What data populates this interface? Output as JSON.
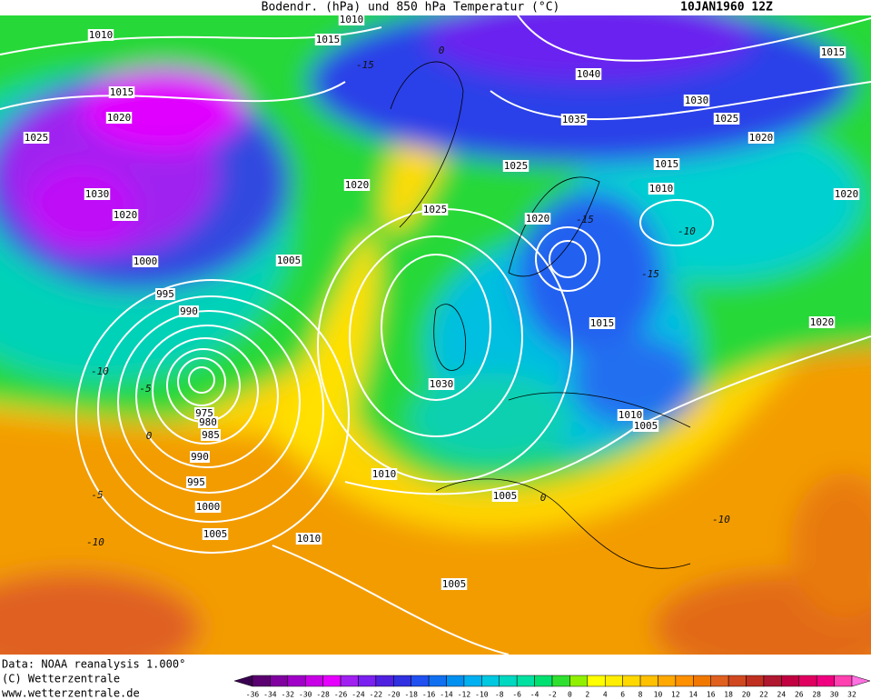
{
  "header": {
    "title": "Bodendr. (hPa) und 850 hPa Temperatur (°C)",
    "date": "10JAN1960 12Z"
  },
  "isobar_labels": [
    "1010",
    "1015",
    "1010",
    "1015",
    "1020",
    "1025",
    "1040",
    "1030",
    "1035",
    "1025",
    "1020",
    "1015",
    "1015",
    "1010",
    "1020",
    "1025",
    "1020",
    "1025",
    "1020",
    "1030",
    "1020",
    "1005",
    "1000",
    "995",
    "990",
    "1015",
    "1020",
    "1030",
    "975",
    "980",
    "985",
    "1010",
    "1005",
    "990",
    "1010",
    "995",
    "1005",
    "1000",
    "1005",
    "1010",
    "1005"
  ],
  "temperature_labels": [
    "-15",
    "0",
    "-15",
    "-15",
    "-10",
    "-10",
    "-5",
    "0",
    "-5",
    "-10",
    "0",
    "-10"
  ],
  "footer": {
    "source": "Data: NOAA reanalysis 1.000°",
    "copyright": "(C) Wetterzentrale",
    "url": "www.wetterzentrale.de"
  },
  "colorbar": {
    "labels": [
      "-36",
      "-34",
      "-32",
      "-30",
      "-28",
      "-26",
      "-24",
      "-22",
      "-20",
      "-18",
      "-16",
      "-14",
      "-12",
      "-10",
      "-8",
      "-6",
      "-4",
      "-2",
      "0",
      "2",
      "4",
      "6",
      "8",
      "10",
      "12",
      "14",
      "16",
      "18",
      "20",
      "22",
      "24",
      "26",
      "28",
      "30",
      "32"
    ],
    "colors": [
      "#3a0050",
      "#5a0070",
      "#8000a0",
      "#a000c8",
      "#c800e6",
      "#e600ff",
      "#a020f0",
      "#7a20f0",
      "#5020e0",
      "#3030e0",
      "#2050f0",
      "#1070f0",
      "#0090f0",
      "#00b0f0",
      "#00c8e0",
      "#00d8c0",
      "#00e0a0",
      "#00e070",
      "#30e030",
      "#90f000",
      "#ffff00",
      "#ffee00",
      "#ffd800",
      "#ffc000",
      "#ffa800",
      "#ff9000",
      "#f07800",
      "#e06020",
      "#d04820",
      "#c03020",
      "#b01830",
      "#c00040",
      "#e00060",
      "#f00080",
      "#ff40b0",
      "#ff70e0"
    ]
  }
}
